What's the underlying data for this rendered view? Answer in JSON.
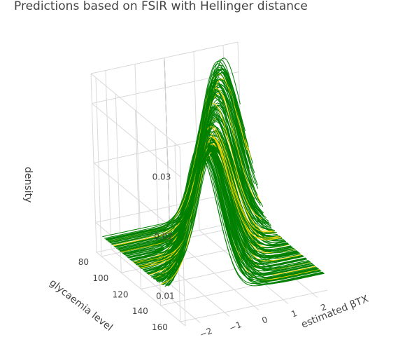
{
  "chart_data": {
    "type": "line",
    "title": "Predictions based on FSIR with Hellinger distance",
    "zlabel": "density",
    "ylabel": "glycaemia level",
    "xlabel": "estimated βTX",
    "x_ticks": [
      "−2",
      "−1",
      "0",
      "1",
      "2"
    ],
    "y_ticks": [
      "80",
      "100",
      "120",
      "140",
      "160"
    ],
    "z_ticks": [
      "0.01",
      "0.02",
      "0.03"
    ],
    "x_range": [
      -2.5,
      2.5
    ],
    "y_range": [
      75,
      165
    ],
    "z_range": [
      0.005,
      0.035
    ],
    "grid": true,
    "series_colors": {
      "main": "#008000",
      "highlight": "#ffd700"
    },
    "n_curves": 180,
    "highlight_fraction": 0.1,
    "curve_shape": {
      "x_min": -2.4,
      "x_max": 2.4,
      "peak_at_low_glycaemia": -1.8,
      "peak_at_high_glycaemia": 1.9,
      "peak_density_min": 0.024,
      "peak_density_max": 0.035,
      "tail_density": 0.008
    }
  }
}
